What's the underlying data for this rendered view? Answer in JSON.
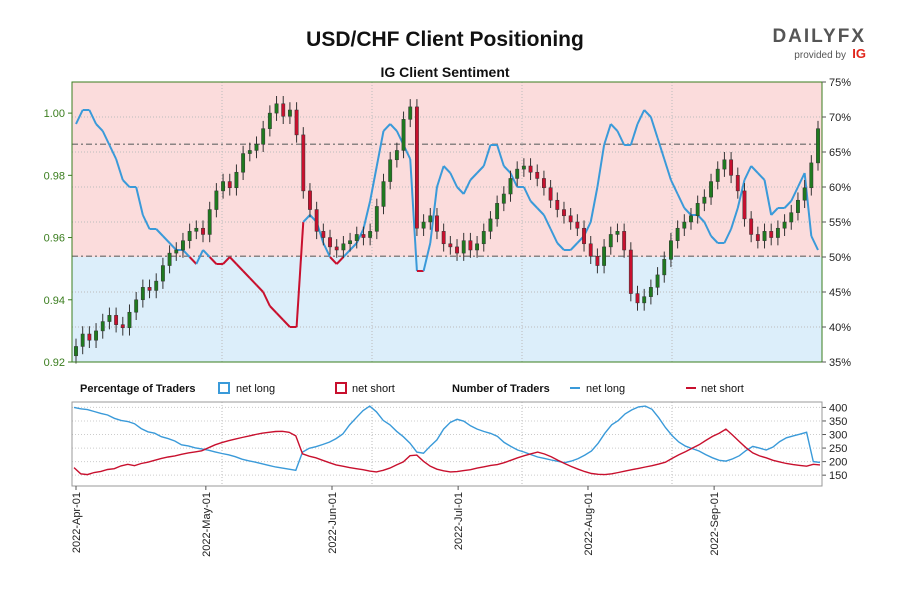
{
  "chart_data": [
    {
      "type": "candlestick",
      "title": "USD/CHF Client Positioning",
      "subtitle": "IG Client Sentiment",
      "ylim_price": [
        0.92,
        1.01
      ],
      "price_ticks": [
        "0.92",
        "0.94",
        "0.96",
        "0.98",
        "1.00"
      ],
      "ylim_percent": [
        35,
        75
      ],
      "percent_ticks": [
        "35%",
        "40%",
        "45%",
        "50%",
        "55%",
        "60%",
        "65%",
        "70%",
        "75%"
      ],
      "price_reference_lines": [
        0.99,
        0.954
      ],
      "percent_reference_line": 50,
      "price_ohlc_close": [
        0.925,
        0.929,
        0.927,
        0.93,
        0.933,
        0.935,
        0.932,
        0.931,
        0.936,
        0.94,
        0.944,
        0.943,
        0.946,
        0.951,
        0.955,
        0.956,
        0.959,
        0.962,
        0.963,
        0.961,
        0.969,
        0.975,
        0.978,
        0.976,
        0.981,
        0.987,
        0.988,
        0.99,
        0.995,
        1.0,
        1.003,
        0.999,
        1.001,
        0.993,
        0.975,
        0.969,
        0.962,
        0.96,
        0.957,
        0.956,
        0.958,
        0.959,
        0.961,
        0.96,
        0.962,
        0.97,
        0.978,
        0.985,
        0.988,
        0.998,
        1.002,
        0.963,
        0.965,
        0.967,
        0.962,
        0.958,
        0.957,
        0.955,
        0.959,
        0.956,
        0.958,
        0.962,
        0.966,
        0.971,
        0.974,
        0.979,
        0.982,
        0.983,
        0.981,
        0.979,
        0.976,
        0.972,
        0.969,
        0.967,
        0.965,
        0.963,
        0.958,
        0.954,
        0.951,
        0.957,
        0.961,
        0.962,
        0.956,
        0.942,
        0.939,
        0.941,
        0.944,
        0.948,
        0.953,
        0.959,
        0.963,
        0.965,
        0.967,
        0.971,
        0.973,
        0.978,
        0.982,
        0.985,
        0.98,
        0.975,
        0.966,
        0.961,
        0.959,
        0.962,
        0.96,
        0.963,
        0.965,
        0.968,
        0.972,
        0.976,
        0.984,
        0.995
      ],
      "net_long_percent": [
        69,
        71,
        71,
        69,
        68,
        66,
        64,
        61,
        60,
        60,
        56,
        54,
        54,
        53,
        52,
        51,
        51,
        50,
        49,
        51,
        50,
        49,
        49,
        50,
        49,
        48,
        47,
        46,
        45,
        43,
        42,
        41,
        40,
        40,
        55,
        56,
        55,
        52,
        50,
        49,
        50,
        51,
        52,
        54,
        58,
        63,
        68,
        69,
        68,
        66,
        64,
        48,
        48,
        52,
        60,
        63,
        62,
        60,
        59,
        61,
        62,
        63,
        66,
        66,
        63,
        62,
        60,
        60,
        58,
        57,
        56,
        54,
        52,
        51,
        51,
        52,
        53,
        55,
        60,
        66,
        69,
        68,
        66,
        66,
        69,
        71,
        70,
        67,
        64,
        61,
        59,
        57,
        56,
        56,
        55,
        53,
        52,
        52,
        54,
        57,
        61,
        63,
        62,
        61,
        56,
        57,
        57,
        58,
        60,
        62,
        53,
        51
      ],
      "net_short_percent": [
        31,
        29,
        29,
        31,
        32,
        34,
        36,
        39,
        40,
        40,
        44,
        46,
        46,
        47,
        48,
        49,
        49,
        50,
        51,
        49,
        50,
        51,
        51,
        50,
        51,
        52,
        53,
        54,
        55,
        57,
        58,
        59,
        60,
        60,
        45,
        44,
        45,
        48,
        50,
        51,
        50,
        49,
        48,
        46,
        42,
        37,
        32,
        31,
        32,
        34,
        36,
        52,
        52,
        48,
        40,
        37,
        38,
        40,
        41,
        39,
        38,
        37,
        34,
        34,
        37,
        38,
        40,
        40,
        42,
        43,
        44,
        46,
        48,
        49,
        49,
        48,
        47,
        45,
        40,
        34,
        31,
        32,
        34,
        34,
        31,
        29,
        30,
        33,
        36,
        39,
        41,
        43,
        44,
        44,
        45,
        47,
        48,
        48,
        46,
        43,
        39,
        37,
        38,
        39,
        44,
        43,
        43,
        42,
        40,
        38,
        47,
        49
      ]
    },
    {
      "type": "line",
      "ylim": [
        110,
        420
      ],
      "yticks": [
        "150",
        "200",
        "250",
        "300",
        "350",
        "400"
      ],
      "xtick_labels": [
        "2022-Apr-01",
        "2022-May-01",
        "2022-Jun-01",
        "2022-Jul-01",
        "2022-Aug-01",
        "2022-Sep-01"
      ],
      "legend_left_header": "Percentage of Traders",
      "legend_right_header": "Number of Traders",
      "series": [
        {
          "name": "net long",
          "color": "#3a9ad9",
          "values": [
            400,
            395,
            392,
            385,
            378,
            372,
            360,
            352,
            348,
            340,
            322,
            310,
            305,
            292,
            285,
            276,
            262,
            258,
            251,
            247,
            242,
            236,
            230,
            225,
            218,
            209,
            203,
            198,
            192,
            186,
            180,
            176,
            172,
            168,
            235,
            249,
            255,
            263,
            272,
            285,
            302,
            335,
            362,
            388,
            405,
            384,
            352,
            336,
            312,
            292,
            268,
            235,
            231,
            257,
            280,
            320,
            345,
            356,
            349,
            332,
            320,
            311,
            304,
            293,
            271,
            256,
            243,
            235,
            226,
            217,
            212,
            206,
            201,
            196,
            202,
            211,
            224,
            239,
            268,
            305,
            336,
            352,
            376,
            391,
            402,
            405,
            393,
            362,
            326,
            296,
            272,
            257,
            248,
            239,
            226,
            214,
            205,
            202,
            210,
            222,
            241,
            256,
            250,
            243,
            254,
            274,
            288,
            295,
            301,
            308,
            200,
            197
          ]
        },
        {
          "name": "net short",
          "color": "#c8102e",
          "values": [
            178,
            155,
            152,
            160,
            164,
            171,
            174,
            184,
            190,
            185,
            193,
            198,
            205,
            212,
            217,
            221,
            227,
            232,
            236,
            240,
            251,
            262,
            270,
            277,
            283,
            289,
            294,
            300,
            305,
            308,
            311,
            312,
            308,
            295,
            229,
            220,
            214,
            205,
            196,
            188,
            183,
            178,
            174,
            170,
            165,
            162,
            168,
            176,
            188,
            199,
            222,
            224,
            201,
            183,
            172,
            166,
            162,
            163,
            167,
            170,
            176,
            181,
            186,
            189,
            196,
            205,
            214,
            222,
            229,
            235,
            228,
            218,
            205,
            193,
            182,
            172,
            163,
            156,
            153,
            152,
            155,
            160,
            165,
            170,
            175,
            180,
            185,
            191,
            198,
            212,
            225,
            237,
            250,
            262,
            278,
            293,
            305,
            320,
            298,
            274,
            251,
            232,
            221,
            214,
            205,
            199,
            193,
            189,
            186,
            183,
            190,
            188
          ]
        }
      ]
    }
  ],
  "logo": {
    "main": "DAILYFX",
    "sub": "provided by",
    "brand": "IG"
  },
  "legend": {
    "pct_header": "Percentage of Traders",
    "pct_long": "net long",
    "pct_short": "net short",
    "num_header": "Number of Traders",
    "num_long": "net long",
    "num_short": "net short"
  },
  "colors": {
    "long": "#3a9ad9",
    "short": "#c8102e",
    "long_fill": "#dceefa",
    "short_fill": "#fbdcdc",
    "candle_up": "#1f7a1f",
    "candle_down": "#c8102e",
    "axis_green": "#3a7d1e"
  }
}
